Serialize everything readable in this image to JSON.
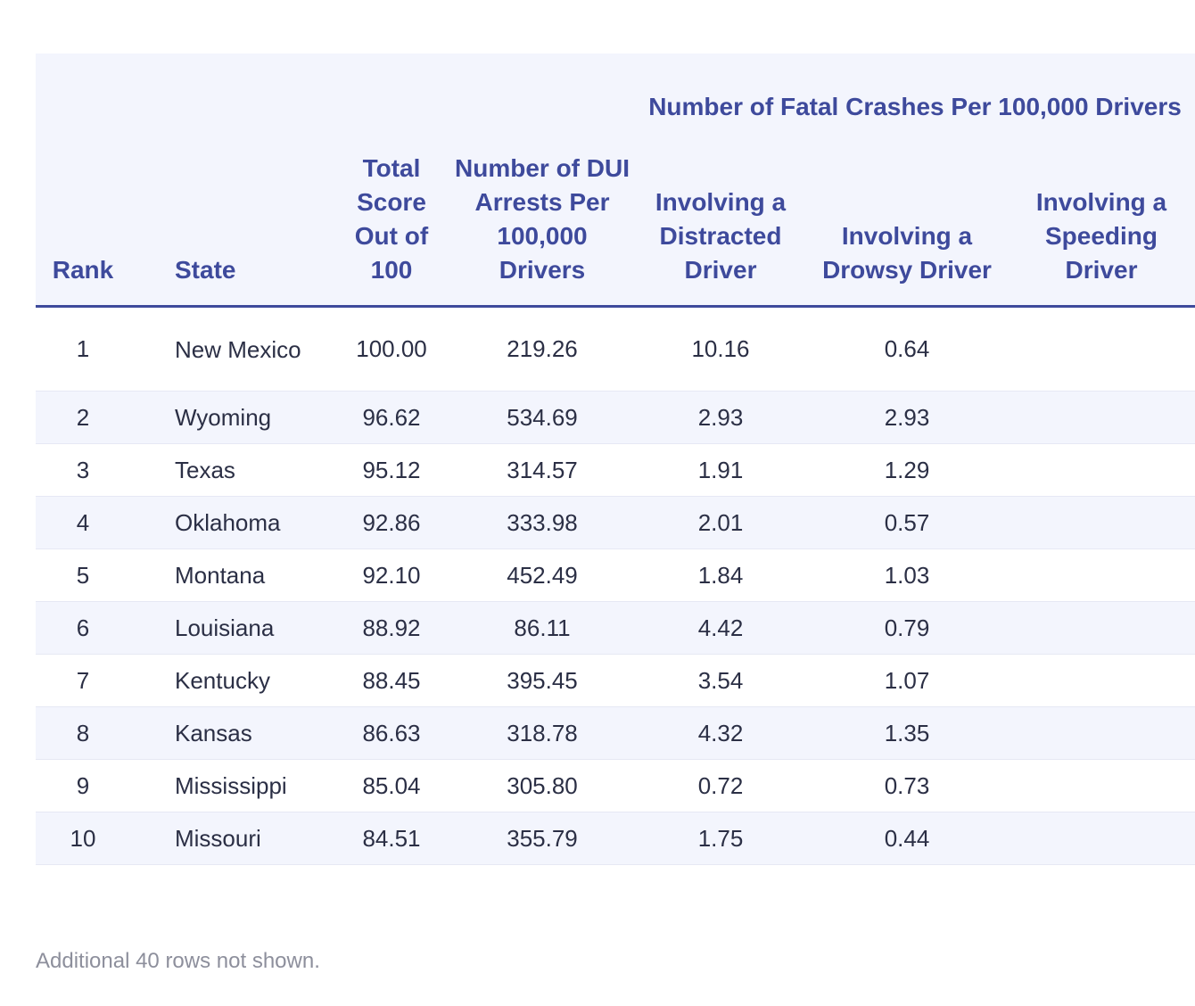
{
  "table": {
    "group_header": "Number of Fatal Crashes Per 100,000 Drivers",
    "columns": {
      "rank": "Rank",
      "state": "State",
      "total_score": "Total Score Out of 100",
      "dui_arrests": "Number of DUI Arrests Per 100,000 Drivers",
      "distracted": "Involving a Distracted Driver",
      "drowsy": "Involving a Drowsy Driver",
      "speeding": "Involving a Speeding Driver"
    },
    "rows": [
      {
        "rank": "1",
        "state": "New Mexico",
        "total_score": "100.00",
        "dui_arrests": "219.26",
        "distracted": "10.16",
        "drowsy": "0.64"
      },
      {
        "rank": "2",
        "state": "Wyoming",
        "total_score": "96.62",
        "dui_arrests": "534.69",
        "distracted": "2.93",
        "drowsy": "2.93"
      },
      {
        "rank": "3",
        "state": "Texas",
        "total_score": "95.12",
        "dui_arrests": "314.57",
        "distracted": "1.91",
        "drowsy": "1.29"
      },
      {
        "rank": "4",
        "state": "Oklahoma",
        "total_score": "92.86",
        "dui_arrests": "333.98",
        "distracted": "2.01",
        "drowsy": "0.57"
      },
      {
        "rank": "5",
        "state": "Montana",
        "total_score": "92.10",
        "dui_arrests": "452.49",
        "distracted": "1.84",
        "drowsy": "1.03"
      },
      {
        "rank": "6",
        "state": "Louisiana",
        "total_score": "88.92",
        "dui_arrests": "86.11",
        "distracted": "4.42",
        "drowsy": "0.79"
      },
      {
        "rank": "7",
        "state": "Kentucky",
        "total_score": "88.45",
        "dui_arrests": "395.45",
        "distracted": "3.54",
        "drowsy": "1.07"
      },
      {
        "rank": "8",
        "state": "Kansas",
        "total_score": "86.63",
        "dui_arrests": "318.78",
        "distracted": "4.32",
        "drowsy": "1.35"
      },
      {
        "rank": "9",
        "state": "Mississippi",
        "total_score": "85.04",
        "dui_arrests": "305.80",
        "distracted": "0.72",
        "drowsy": "0.73"
      },
      {
        "rank": "10",
        "state": "Missouri",
        "total_score": "84.51",
        "dui_arrests": "355.79",
        "distracted": "1.75",
        "drowsy": "0.44"
      }
    ]
  },
  "footnote": "Additional 40 rows not shown.",
  "colors": {
    "header_text": "#3e4a9c",
    "stripe": "#f3f5fd",
    "body_text": "#2b2f45",
    "footnote_text": "#8d8f9c"
  }
}
